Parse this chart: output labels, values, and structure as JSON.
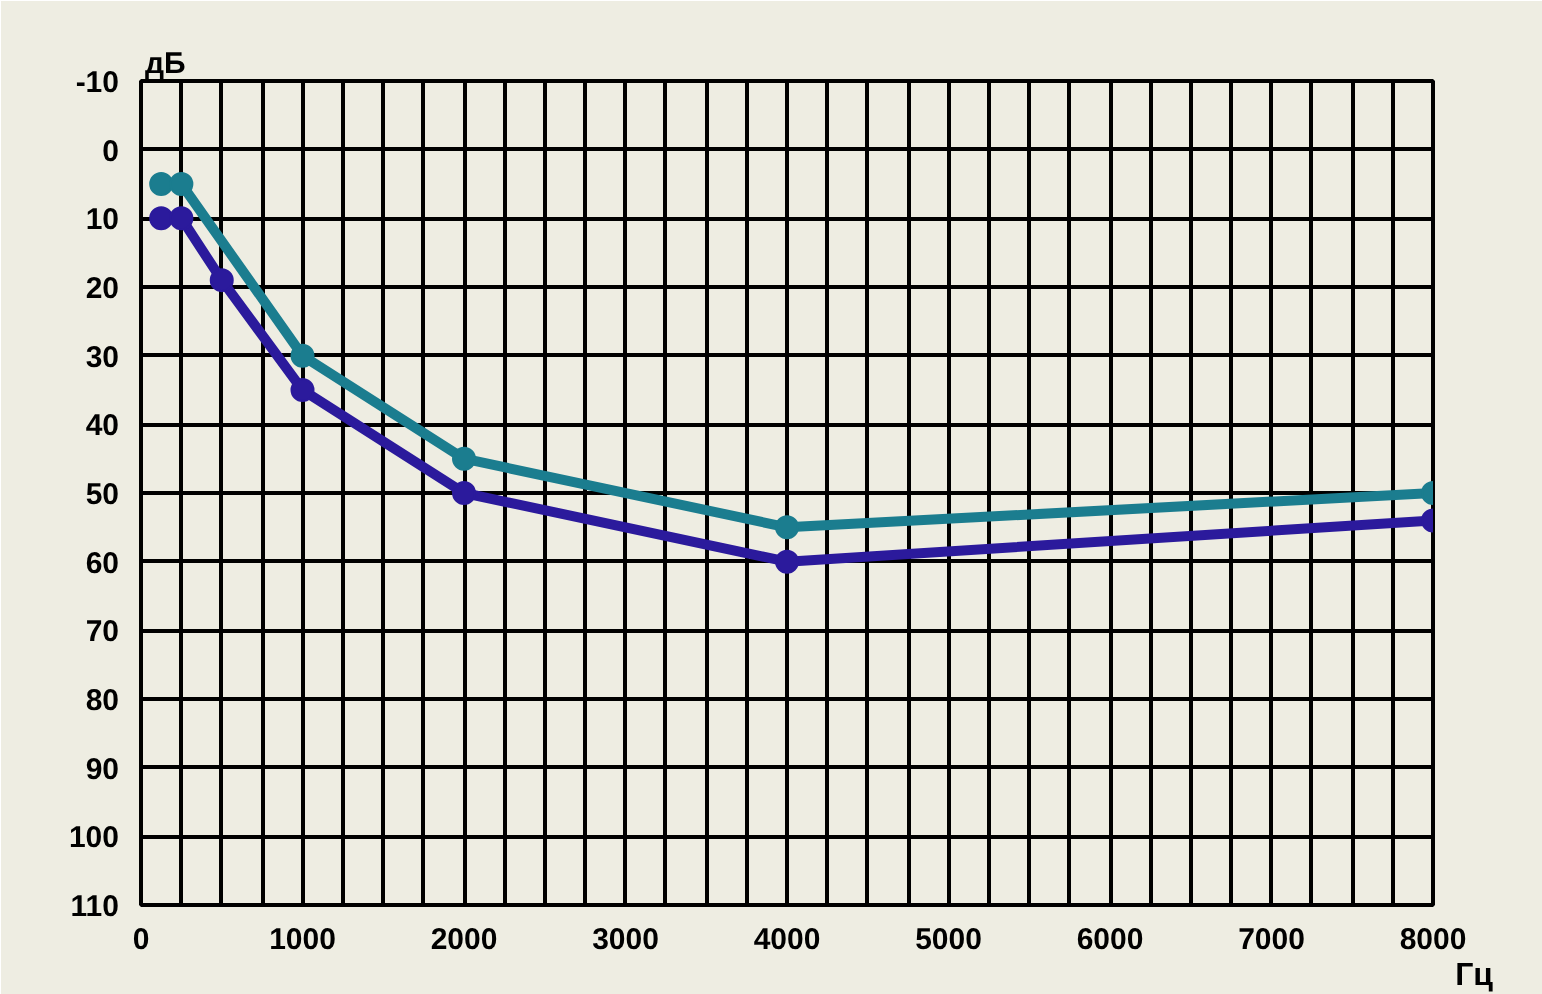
{
  "chart_data": {
    "type": "line",
    "xlabel": "Гц",
    "ylabel": "дБ",
    "xlim": [
      0,
      8000
    ],
    "ylim": [
      110,
      -10
    ],
    "xticks": [
      0,
      {
        "value": 250,
        "label": null
      },
      {
        "value": 500,
        "label": null
      },
      {
        "value": 750,
        "label": null
      },
      1000,
      {
        "value": 1250,
        "label": null
      },
      {
        "value": 1500,
        "label": null
      },
      {
        "value": 1750,
        "label": null
      },
      2000,
      {
        "value": 2250,
        "label": null
      },
      {
        "value": 2500,
        "label": null
      },
      {
        "value": 2750,
        "label": null
      },
      3000,
      {
        "value": 3250,
        "label": null
      },
      {
        "value": 3500,
        "label": null
      },
      {
        "value": 3750,
        "label": null
      },
      4000,
      {
        "value": 4250,
        "label": null
      },
      {
        "value": 4500,
        "label": null
      },
      {
        "value": 4750,
        "label": null
      },
      5000,
      {
        "value": 5250,
        "label": null
      },
      {
        "value": 5500,
        "label": null
      },
      {
        "value": 5750,
        "label": null
      },
      6000,
      {
        "value": 6250,
        "label": null
      },
      {
        "value": 6500,
        "label": null
      },
      {
        "value": 6750,
        "label": null
      },
      7000,
      {
        "value": 7250,
        "label": null
      },
      {
        "value": 7500,
        "label": null
      },
      {
        "value": 7750,
        "label": null
      },
      8000
    ],
    "yticks": [
      -10,
      0,
      10,
      20,
      30,
      40,
      50,
      60,
      70,
      80,
      90,
      100,
      110
    ],
    "grid": true,
    "marker": "circle",
    "line_style": "solid",
    "series": [
      {
        "color": "#1b7d8f",
        "x": [
          125,
          250,
          1000,
          2000,
          4000,
          8000
        ],
        "values": [
          5,
          5,
          30,
          45,
          55,
          50
        ]
      },
      {
        "color": "#2b1a9c",
        "x": [
          125,
          250,
          500,
          1000,
          2000,
          4000,
          8000
        ],
        "values": [
          10,
          10,
          19,
          35,
          50,
          60,
          54
        ]
      }
    ]
  }
}
